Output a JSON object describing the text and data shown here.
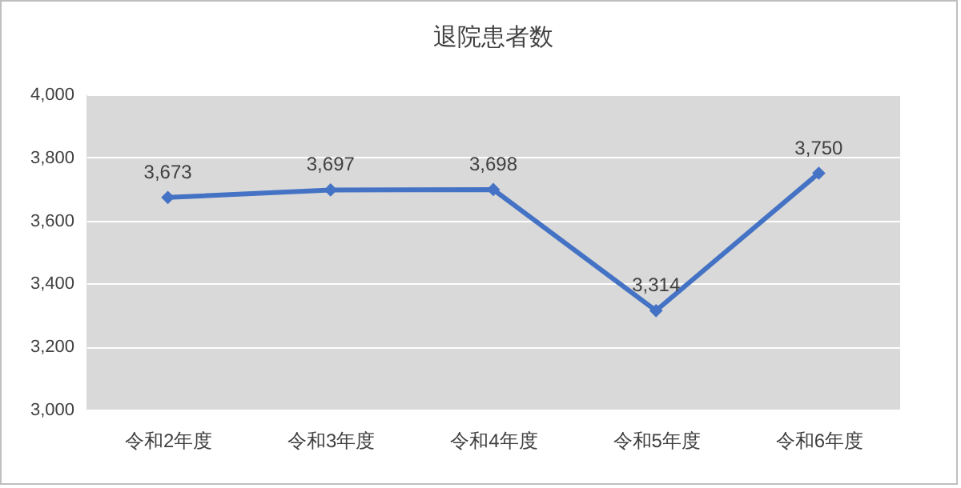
{
  "chart_data": {
    "type": "line",
    "title": "退院患者数",
    "categories": [
      "令和2年度",
      "令和3年度",
      "令和4年度",
      "令和5年度",
      "令和6年度"
    ],
    "series": [
      {
        "color": "#4472c4",
        "values": [
          3673,
          3697,
          3698,
          3314,
          3750
        ],
        "value_labels": [
          "3,673",
          "3,697",
          "3,698",
          "3,314",
          "3,750"
        ]
      }
    ],
    "ylim": [
      3000,
      4000
    ],
    "yticks": [
      {
        "value": 3000,
        "label": "3,000"
      },
      {
        "value": 3200,
        "label": "3,200"
      },
      {
        "value": 3400,
        "label": "3,400"
      },
      {
        "value": 3600,
        "label": "3,600"
      },
      {
        "value": 3800,
        "label": "3,800"
      },
      {
        "value": 4000,
        "label": "4,000"
      }
    ],
    "grid": "y",
    "legend": false,
    "marker": "diamond",
    "line_style": "solid"
  }
}
